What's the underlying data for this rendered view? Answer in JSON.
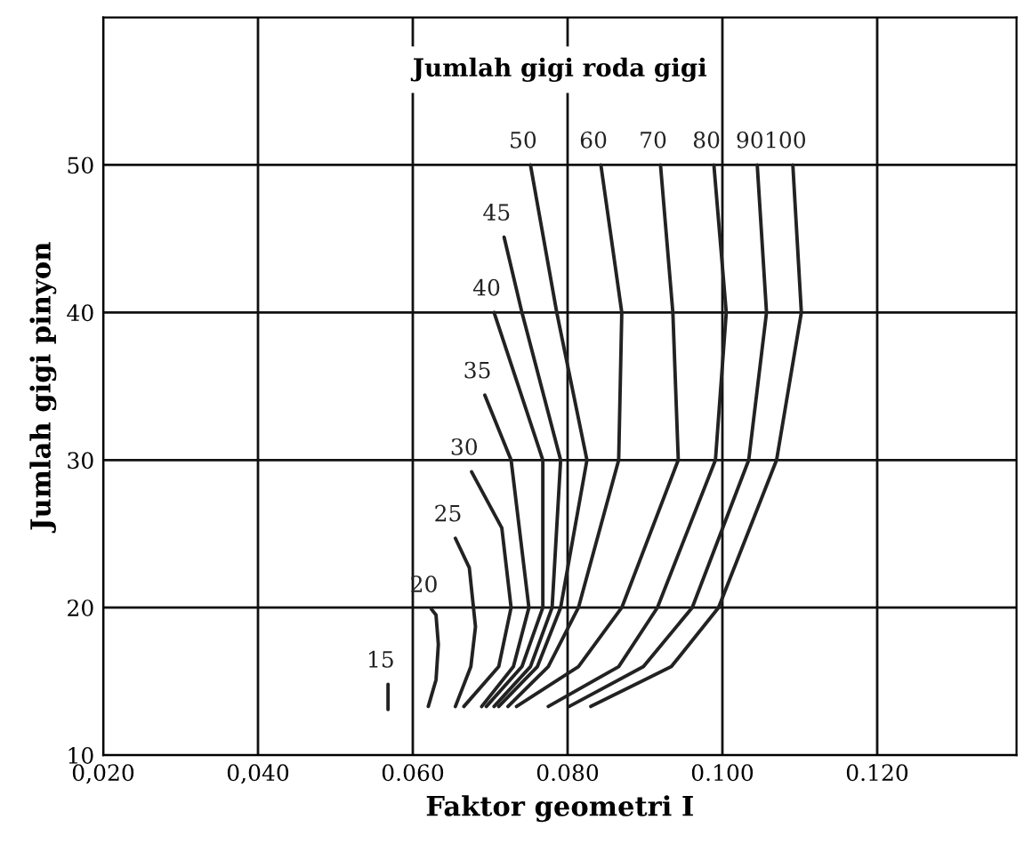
{
  "chart_data": {
    "type": "line",
    "title": "Jumlah gigi roda gigi",
    "xlabel": "Faktor geometri I",
    "ylabel": "Jumlah gigi pinyon",
    "xlim": [
      0.02,
      0.138
    ],
    "ylim": [
      10,
      60
    ],
    "xticks": [
      {
        "value": 0.02,
        "label": "0,020"
      },
      {
        "value": 0.04,
        "label": "0,040"
      },
      {
        "value": 0.06,
        "label": "0.060"
      },
      {
        "value": 0.08,
        "label": "0.080"
      },
      {
        "value": 0.1,
        "label": "0.100"
      },
      {
        "value": 0.12,
        "label": "0.120"
      }
    ],
    "yticks": [
      10,
      20,
      30,
      40,
      50
    ],
    "grid": true,
    "legend": false,
    "marker": "none",
    "line_style": "solid",
    "series": [
      {
        "name": "15",
        "color": "#222222",
        "x": [
          0.0568,
          0.0568
        ],
        "values": [
          13.1,
          14.8
        ]
      },
      {
        "name": "20",
        "color": "#222222",
        "x": [
          0.062,
          0.063,
          0.0633,
          0.063,
          0.0624
        ],
        "values": [
          13.3,
          15.1,
          17.5,
          19.5,
          19.9
        ]
      },
      {
        "name": "25",
        "color": "#222222",
        "x": [
          0.0655,
          0.0675,
          0.0681,
          0.0673,
          0.0655
        ],
        "values": [
          13.3,
          16,
          18.7,
          22.7,
          24.7
        ]
      },
      {
        "name": "30",
        "color": "#222222",
        "x": [
          0.0666,
          0.0711,
          0.0727,
          0.0715,
          0.0676
        ],
        "values": [
          13.3,
          16,
          20,
          25.4,
          29.2
        ]
      },
      {
        "name": "35",
        "color": "#222222",
        "x": [
          0.0689,
          0.073,
          0.075,
          0.0727,
          0.0693
        ],
        "values": [
          13.3,
          16,
          20,
          30,
          34.4
        ]
      },
      {
        "name": "40",
        "color": "#222222",
        "x": [
          0.0695,
          0.0741,
          0.0768,
          0.0768,
          0.0705
        ],
        "values": [
          13.3,
          16,
          20,
          30,
          40
        ]
      },
      {
        "name": "45",
        "color": "#222222",
        "x": [
          0.0705,
          0.0752,
          0.078,
          0.0791,
          0.0741,
          0.0718
        ],
        "values": [
          13.3,
          16,
          20,
          30,
          40,
          45.1
        ]
      },
      {
        "name": "50",
        "color": "#222222",
        "x": [
          0.0711,
          0.0761,
          0.0791,
          0.0825,
          0.0786,
          0.0752
        ],
        "values": [
          13.3,
          16,
          20,
          30,
          40,
          50
        ]
      },
      {
        "name": "60",
        "color": "#222222",
        "x": [
          0.0723,
          0.0775,
          0.0814,
          0.0866,
          0.087,
          0.0843
        ],
        "values": [
          13.3,
          16,
          20,
          30,
          40,
          50
        ]
      },
      {
        "name": "70",
        "color": "#222222",
        "x": [
          0.0734,
          0.0814,
          0.087,
          0.0943,
          0.0936,
          0.092
        ],
        "values": [
          13.3,
          16,
          20,
          30,
          40,
          50
        ]
      },
      {
        "name": "80",
        "color": "#222222",
        "x": [
          0.0775,
          0.0866,
          0.0916,
          0.0991,
          0.1005,
          0.0989
        ],
        "values": [
          13.3,
          16,
          20,
          30,
          40,
          50
        ]
      },
      {
        "name": "90",
        "color": "#222222",
        "x": [
          0.0802,
          0.0898,
          0.0961,
          0.1034,
          0.1057,
          0.1045
        ],
        "values": [
          13.3,
          16,
          20,
          30,
          40,
          50
        ]
      },
      {
        "name": "100",
        "color": "#222222",
        "x": [
          0.083,
          0.0934,
          0.0995,
          0.107,
          0.1102,
          0.1091
        ],
        "values": [
          13.3,
          16,
          20,
          30,
          40,
          50
        ]
      }
    ]
  }
}
